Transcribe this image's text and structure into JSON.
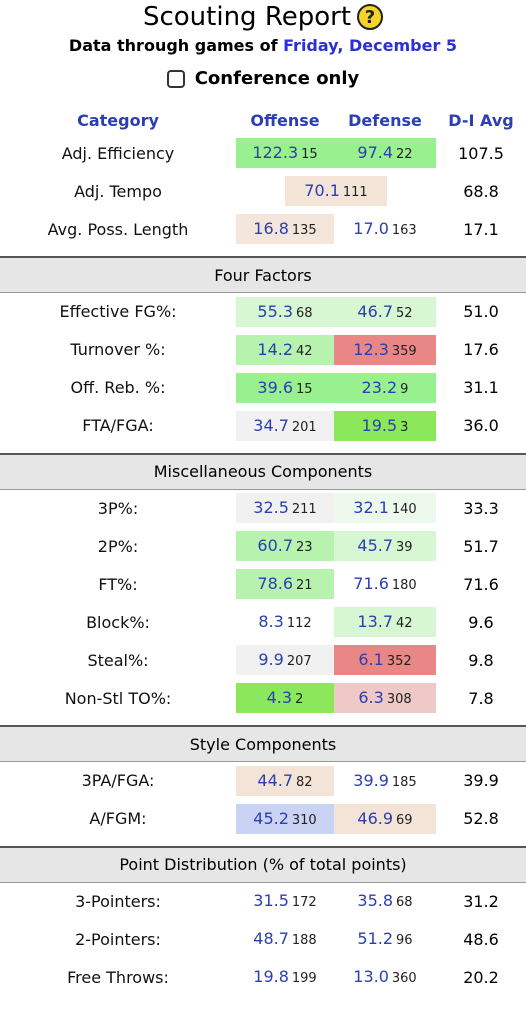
{
  "header": {
    "title": "Scouting Report",
    "help_icon_text": "?",
    "subtitle_prefix": "Data through games of",
    "subtitle_date": "Friday, December 5",
    "conference_only_label": "Conference only"
  },
  "columns": {
    "category": "Category",
    "offense": "Offense",
    "defense": "Defense",
    "avg": "D-I Avg"
  },
  "rows_top": [
    {
      "label": "Adj. Efficiency",
      "off": "122.3",
      "off_rank": "15",
      "def": "97.4",
      "def_rank": "22",
      "avg": "107.5"
    },
    {
      "label": "Adj. Tempo",
      "val": "70.1",
      "rank": "111",
      "avg": "68.8"
    },
    {
      "label": "Avg. Poss. Length",
      "off": "16.8",
      "off_rank": "135",
      "def": "17.0",
      "def_rank": "163",
      "avg": "17.1"
    }
  ],
  "sections": {
    "four_factors": "Four Factors",
    "misc": "Miscellaneous Components",
    "style": "Style Components",
    "points": "Point Distribution (% of total points)"
  },
  "four_factors": [
    {
      "label": "Effective FG%:",
      "off": "55.3",
      "off_rank": "68",
      "def": "46.7",
      "def_rank": "52",
      "avg": "51.0"
    },
    {
      "label": "Turnover %:",
      "off": "14.2",
      "off_rank": "42",
      "def": "12.3",
      "def_rank": "359",
      "avg": "17.6"
    },
    {
      "label": "Off. Reb. %:",
      "off": "39.6",
      "off_rank": "15",
      "def": "23.2",
      "def_rank": "9",
      "avg": "31.1"
    },
    {
      "label": "FTA/FGA:",
      "off": "34.7",
      "off_rank": "201",
      "def": "19.5",
      "def_rank": "3",
      "avg": "36.0"
    }
  ],
  "misc": [
    {
      "label": "3P%:",
      "off": "32.5",
      "off_rank": "211",
      "def": "32.1",
      "def_rank": "140",
      "avg": "33.3"
    },
    {
      "label": "2P%:",
      "off": "60.7",
      "off_rank": "23",
      "def": "45.7",
      "def_rank": "39",
      "avg": "51.7"
    },
    {
      "label": "FT%:",
      "off": "78.6",
      "off_rank": "21",
      "def": "71.6",
      "def_rank": "180",
      "avg": "71.6"
    },
    {
      "label": "Block%:",
      "off": "8.3",
      "off_rank": "112",
      "def": "13.7",
      "def_rank": "42",
      "avg": "9.6"
    },
    {
      "label": "Steal%:",
      "off": "9.9",
      "off_rank": "207",
      "def": "6.1",
      "def_rank": "352",
      "avg": "9.8"
    },
    {
      "label": "Non-Stl TO%:",
      "off": "4.3",
      "off_rank": "2",
      "def": "6.3",
      "def_rank": "308",
      "avg": "7.8"
    }
  ],
  "style": [
    {
      "label": "3PA/FGA:",
      "off": "44.7",
      "off_rank": "82",
      "def": "39.9",
      "def_rank": "185",
      "avg": "39.9"
    },
    {
      "label": "A/FGM:",
      "off": "45.2",
      "off_rank": "310",
      "def": "46.9",
      "def_rank": "69",
      "avg": "52.8"
    }
  ],
  "points": [
    {
      "label": "3-Pointers:",
      "off": "31.5",
      "off_rank": "172",
      "def": "35.8",
      "def_rank": "68",
      "avg": "31.2"
    },
    {
      "label": "2-Pointers:",
      "off": "48.7",
      "off_rank": "188",
      "def": "51.2",
      "def_rank": "96",
      "avg": "48.6"
    },
    {
      "label": "Free Throws:",
      "off": "19.8",
      "off_rank": "199",
      "def": "13.0",
      "def_rank": "360",
      "avg": "20.2"
    }
  ],
  "colors": {
    "link_blue": "#2a3fb0",
    "strong_green": "#98f08f",
    "strong_red": "#e98686",
    "section_gray": "#e6e6e6"
  }
}
